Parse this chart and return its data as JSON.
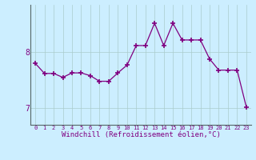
{
  "x": [
    0,
    1,
    2,
    3,
    4,
    5,
    6,
    7,
    8,
    9,
    10,
    11,
    12,
    13,
    14,
    15,
    16,
    17,
    18,
    19,
    20,
    21,
    22,
    23
  ],
  "y": [
    7.8,
    7.62,
    7.62,
    7.55,
    7.63,
    7.63,
    7.58,
    7.48,
    7.48,
    7.63,
    7.77,
    8.12,
    8.12,
    8.52,
    8.12,
    8.52,
    8.22,
    8.22,
    8.22,
    7.88,
    7.68,
    7.68,
    7.68,
    7.02
  ],
  "line_color": "#800080",
  "marker": "+",
  "markersize": 4,
  "markeredgewidth": 1.2,
  "linewidth": 0.9,
  "bg_color": "#cceeff",
  "grid_color": "#aacccc",
  "xlabel": "Windchill (Refroidissement éolien,°C)",
  "xlabel_fontsize": 6.5,
  "xlabel_color": "#800080",
  "ytick_labels": [
    "7",
    "8"
  ],
  "ytick_positions": [
    7.0,
    8.0
  ],
  "ytick_fontsize": 7,
  "xtick_labels": [
    "0",
    "1",
    "2",
    "3",
    "4",
    "5",
    "6",
    "7",
    "8",
    "9",
    "10",
    "11",
    "12",
    "13",
    "14",
    "15",
    "16",
    "17",
    "18",
    "19",
    "20",
    "21",
    "22",
    "23"
  ],
  "xtick_fontsize": 5.0,
  "ylim": [
    6.7,
    8.85
  ],
  "xlim": [
    -0.5,
    23.5
  ]
}
